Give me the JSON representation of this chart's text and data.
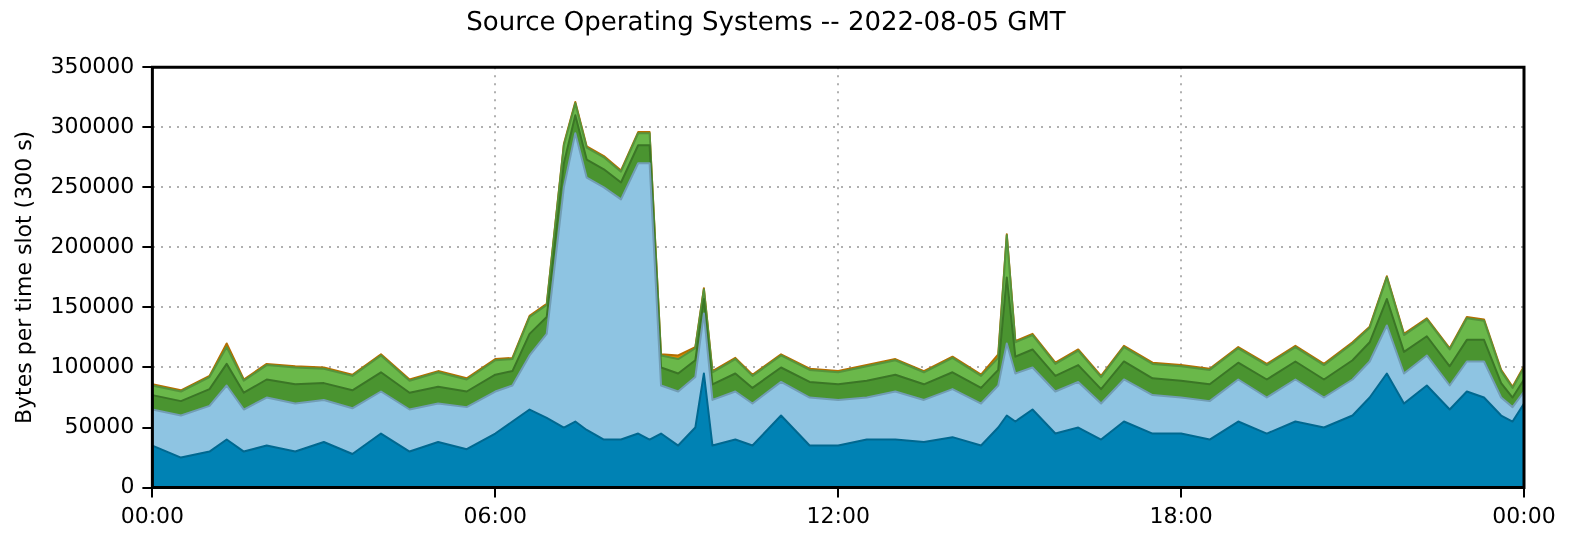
{
  "chart_data": {
    "type": "area",
    "stacked": true,
    "title": "Source Operating Systems -- 2022-08-05 GMT",
    "ylabel": "Bytes per time slot (300 s)",
    "x": [
      0,
      0.5,
      1,
      1.3,
      1.6,
      2,
      2.5,
      3,
      3.5,
      4,
      4.5,
      5,
      5.5,
      6,
      6.3,
      6.6,
      6.9,
      7.2,
      7.4,
      7.6,
      7.9,
      8.2,
      8.5,
      8.7,
      8.9,
      9.2,
      9.5,
      9.65,
      9.8,
      10.2,
      10.5,
      11,
      11.5,
      12,
      12.5,
      13,
      13.5,
      14,
      14.5,
      14.8,
      14.95,
      15.1,
      15.4,
      15.8,
      16.2,
      16.6,
      17,
      17.5,
      18,
      18.5,
      19,
      19.5,
      20,
      20.5,
      21,
      21.3,
      21.6,
      21.9,
      22.3,
      22.7,
      23,
      23.3,
      23.6,
      23.8,
      24
    ],
    "series": [
      {
        "color": "#0082b4",
        "values": [
          35000,
          25000,
          30000,
          40000,
          30000,
          35000,
          30000,
          38000,
          28000,
          45000,
          30000,
          38000,
          32000,
          45000,
          55000,
          65000,
          58000,
          50000,
          55000,
          48000,
          40000,
          40000,
          45000,
          40000,
          45000,
          35000,
          50000,
          95000,
          35000,
          40000,
          35000,
          60000,
          35000,
          35000,
          40000,
          40000,
          38000,
          42000,
          35000,
          50000,
          60000,
          55000,
          65000,
          45000,
          50000,
          40000,
          55000,
          45000,
          45000,
          40000,
          55000,
          45000,
          55000,
          50000,
          60000,
          75000,
          95000,
          70000,
          85000,
          65000,
          80000,
          75000,
          60000,
          55000,
          70000
        ]
      },
      {
        "color": "#8ec4e2",
        "values": [
          30000,
          35000,
          38000,
          45000,
          35000,
          40000,
          40000,
          35000,
          38000,
          35000,
          35000,
          32000,
          35000,
          35000,
          30000,
          45000,
          70000,
          200000,
          240000,
          210000,
          210000,
          200000,
          225000,
          230000,
          40000,
          45000,
          42000,
          50000,
          38000,
          40000,
          35000,
          28000,
          40000,
          38000,
          35000,
          40000,
          35000,
          40000,
          35000,
          35000,
          60000,
          40000,
          35000,
          35000,
          38000,
          30000,
          35000,
          32000,
          30000,
          32000,
          35000,
          30000,
          35000,
          25000,
          30000,
          30000,
          40000,
          25000,
          25000,
          20000,
          25000,
          30000,
          15000,
          12000,
          10000
        ]
      },
      {
        "color": "#4a9430",
        "values": [
          12000,
          12000,
          14000,
          18000,
          14000,
          15000,
          16000,
          14000,
          15000,
          16000,
          14000,
          14000,
          13000,
          14000,
          12000,
          18000,
          14000,
          20000,
          15000,
          15000,
          15000,
          14000,
          15000,
          15000,
          15000,
          15000,
          14000,
          12000,
          13000,
          15000,
          13000,
          12000,
          13000,
          13000,
          14000,
          14000,
          13000,
          14000,
          13000,
          13000,
          55000,
          14000,
          15000,
          13000,
          14000,
          12000,
          15000,
          14000,
          14000,
          14000,
          14000,
          15000,
          15000,
          15000,
          16000,
          16000,
          22000,
          18000,
          16000,
          16000,
          18000,
          18000,
          12000,
          8000,
          10000
        ]
      },
      {
        "color": "#6ab84a",
        "values": [
          8000,
          8000,
          10000,
          14000,
          10000,
          12000,
          14000,
          12000,
          12000,
          14000,
          10000,
          12000,
          10000,
          12000,
          10000,
          14000,
          10000,
          15000,
          10000,
          10000,
          10000,
          9000,
          10000,
          10000,
          10000,
          12000,
          10000,
          8000,
          10000,
          12000,
          10000,
          10000,
          10000,
          10000,
          12000,
          12000,
          10000,
          12000,
          10000,
          10000,
          35000,
          12000,
          12000,
          10000,
          12000,
          10000,
          12000,
          12000,
          12000,
          12000,
          12000,
          12000,
          12000,
          12000,
          14000,
          12000,
          18000,
          14000,
          14000,
          14000,
          18000,
          16000,
          10000,
          8000,
          10000
        ]
      },
      {
        "color": "#e08a00",
        "values": [
          1000,
          1000,
          1000,
          3000,
          1000,
          1000,
          1000,
          1000,
          1000,
          1000,
          1000,
          1000,
          1000,
          1000,
          1000,
          1000,
          1000,
          1000,
          1000,
          1000,
          1000,
          1000,
          1000,
          1000,
          1000,
          3000,
          1000,
          1000,
          1000,
          1000,
          1000,
          1000,
          1000,
          1000,
          1000,
          1000,
          1000,
          1000,
          1000,
          3000,
          1000,
          1000,
          1000,
          1000,
          1000,
          1000,
          1000,
          1000,
          1000,
          1000,
          1000,
          1000,
          1000,
          1000,
          1000,
          1000,
          1000,
          1000,
          1000,
          1000,
          1000,
          1000,
          1000,
          1000,
          1000
        ]
      }
    ],
    "xlim": [
      0,
      24
    ],
    "xticks": [
      {
        "value": 0,
        "label": "00:00"
      },
      {
        "value": 6,
        "label": "06:00"
      },
      {
        "value": 12,
        "label": "12:00"
      },
      {
        "value": 18,
        "label": "18:00"
      },
      {
        "value": 24,
        "label": "00:00"
      }
    ],
    "ylim": [
      0,
      350000
    ],
    "yticks": [
      0,
      50000,
      100000,
      150000,
      200000,
      250000,
      300000,
      350000
    ],
    "grid": true,
    "legend": false
  }
}
